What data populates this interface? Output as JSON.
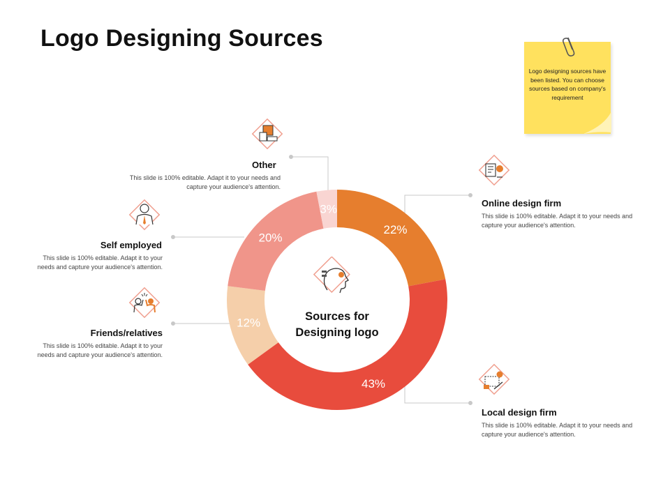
{
  "page": {
    "title": "Logo Designing Sources"
  },
  "note": {
    "text": "Logo designing sources have been listed. You can choose sources based on company's requirement"
  },
  "chart_data": {
    "type": "donut",
    "center_label": "Sources for Designing logo",
    "slices": [
      {
        "name": "Online design firm",
        "value": 22,
        "label": "22%",
        "color": "#e67e2e"
      },
      {
        "name": "Local design firm",
        "value": 43,
        "label": "43%",
        "color": "#e84c3d"
      },
      {
        "name": "Friends/relatives",
        "value": 12,
        "label": "12%",
        "color": "#f5cfaa"
      },
      {
        "name": "Self employed",
        "value": 20,
        "label": "20%",
        "color": "#f0958a"
      },
      {
        "name": "Other",
        "value": 3,
        "label": "3%",
        "color": "#f9d5d2"
      }
    ]
  },
  "sources": {
    "other": {
      "title": "Other",
      "desc": "This slide is 100% editable.  Adapt it to your needs and capture your audience's attention."
    },
    "self_employed": {
      "title": "Self employed",
      "desc": "This slide is 100% editable.  Adapt it to your needs and capture your audience's attention."
    },
    "friends": {
      "title": "Friends/relatives",
      "desc": "This slide is 100% editable.  Adapt it to your needs and capture your audience's attention."
    },
    "online": {
      "title": "Online design firm",
      "desc": "This slide is 100% editable.  Adapt it to your needs and capture your audience's attention."
    },
    "local": {
      "title": "Local design firm",
      "desc": "This slide is 100% editable.  Adapt it to your needs and capture your audience's attention."
    }
  },
  "icons": {
    "other": "building-blocks-icon",
    "self_employed": "businessman-icon",
    "friends": "high-five-icon",
    "online": "design-tools-icon",
    "local": "blueprint-icon",
    "center": "creative-mind-icon"
  }
}
